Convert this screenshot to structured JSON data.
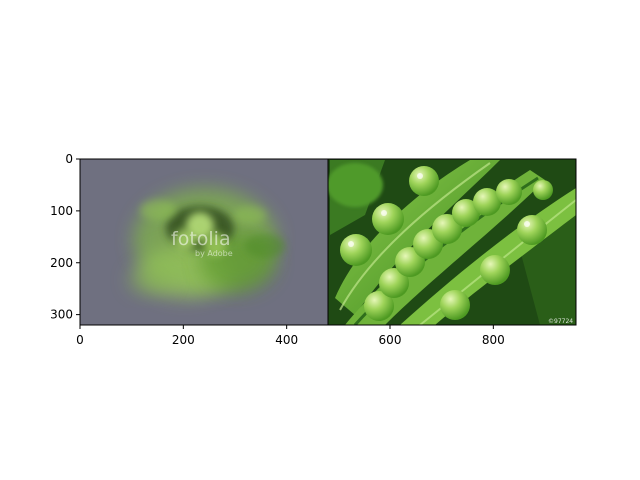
{
  "chart_data": {
    "type": "image",
    "title": "",
    "xlabel": "",
    "ylabel": "",
    "xlim": [
      0,
      960
    ],
    "ylim": [
      320,
      0
    ],
    "xticks": [
      0,
      200,
      400,
      600,
      800
    ],
    "yticks": [
      0,
      100,
      200,
      300
    ],
    "panels": [
      {
        "name": "left",
        "x_range": [
          0,
          480
        ],
        "description": "blurred green peas on gray background"
      },
      {
        "name": "right",
        "x_range": [
          480,
          960
        ],
        "description": "open pea pods with green peas"
      }
    ],
    "watermark": {
      "main": "fotolia",
      "sub": "by Adobe"
    },
    "corner_mark": "©97724"
  },
  "colors": {
    "left_background": "#6f7080",
    "pea_green": "#8fc94a",
    "pod_dark": "#2f6e1c",
    "pod_light": "#6fb33a"
  }
}
